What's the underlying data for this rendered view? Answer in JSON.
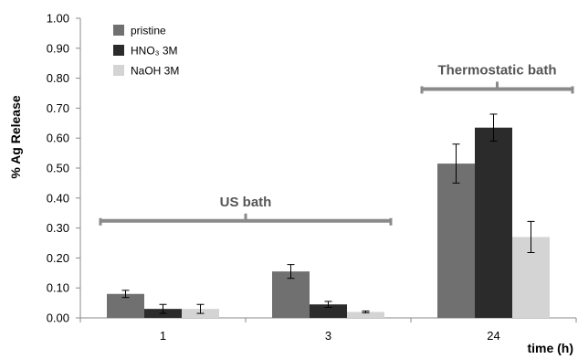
{
  "chart_data": {
    "type": "bar",
    "ylabel": "% Ag Release",
    "xlabel": "time (h)",
    "ylim": [
      0,
      1.0
    ],
    "yticks": [
      "0.00",
      "0.10",
      "0.20",
      "0.30",
      "0.40",
      "0.50",
      "0.60",
      "0.70",
      "0.80",
      "0.90",
      "1.00"
    ],
    "categories": [
      "1",
      "3",
      "24"
    ],
    "grid": false,
    "legend_position": "top-left",
    "series": [
      {
        "name": "pristine",
        "color": "#707070",
        "values": [
          0.08,
          0.155,
          0.515
        ],
        "errors": [
          0.012,
          0.023,
          0.065
        ]
      },
      {
        "name": "HNO₃ 3M",
        "color": "#2b2b2b",
        "values": [
          0.03,
          0.045,
          0.635
        ],
        "errors": [
          0.015,
          0.01,
          0.045
        ]
      },
      {
        "name": "NaOH 3M",
        "color": "#d4d4d4",
        "values": [
          0.03,
          0.02,
          0.27
        ],
        "errors": [
          0.015,
          0.003,
          0.052
        ]
      }
    ],
    "annotations": [
      {
        "label": "US bath",
        "from_category": 0,
        "to_category": 1,
        "y": 0.33
      },
      {
        "label": "Thermostatic bath",
        "from_category": 2,
        "to_category": 2,
        "y": 0.77
      }
    ]
  }
}
